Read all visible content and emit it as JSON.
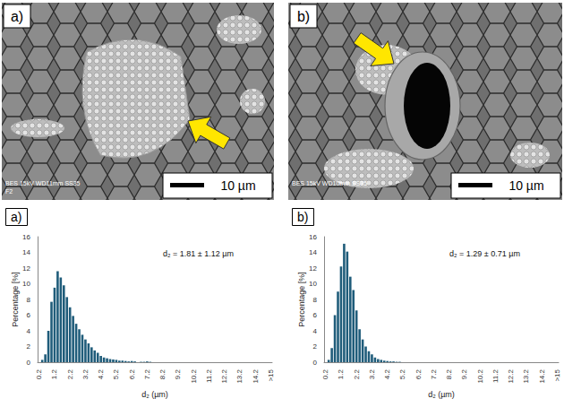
{
  "images": [
    {
      "label": "a)",
      "scale_bar": "10 µm",
      "info": "BES  15kV  WD11mm  SS35",
      "info2": "F2"
    },
    {
      "label": "b)",
      "scale_bar": "10 µm",
      "info": "BES  15kV  WD10mm  SS35"
    }
  ],
  "chart_data": [
    {
      "type": "bar",
      "title": "a)",
      "annotations": [
        "d₂ = 1.81 ± 1.12 µm"
      ],
      "x_label": "d₂ (µm)",
      "y_label": "Percentage [%]",
      "categories": [
        "0.2",
        null,
        null,
        null,
        null,
        "1.2",
        null,
        null,
        null,
        null,
        "2.2",
        null,
        null,
        null,
        null,
        "3.2",
        null,
        null,
        null,
        null,
        "4.2",
        null,
        null,
        null,
        null,
        "5.2",
        null,
        null,
        null,
        null,
        "6.2",
        null,
        null,
        null,
        null,
        "7.2",
        null,
        null,
        null,
        null,
        "8.2",
        null,
        null,
        null,
        null,
        "9.2",
        null,
        null,
        null,
        null,
        "10.2",
        null,
        null,
        null,
        null,
        "11.2",
        null,
        null,
        null,
        null,
        "12.2",
        null,
        null,
        null,
        null,
        "13.2",
        null,
        null,
        null,
        null,
        "14.2",
        null,
        null,
        null,
        null,
        ">15"
      ],
      "values": [
        0,
        0.3,
        1.0,
        4.0,
        7.7,
        9.5,
        11.6,
        10.8,
        9.8,
        8.3,
        7.0,
        5.9,
        4.9,
        4.2,
        3.5,
        2.9,
        2.4,
        1.9,
        1.5,
        1.2,
        0.8,
        0.6,
        0.5,
        0.4,
        0.35,
        0.3,
        0.2,
        0.2,
        0.15,
        0.1,
        0.15,
        0.1,
        0,
        0.05,
        0.05,
        0.1,
        0.05,
        0,
        0,
        0,
        0,
        0,
        0,
        0,
        0,
        0,
        0,
        0,
        0,
        0,
        0,
        0,
        0,
        0,
        0,
        0,
        0,
        0,
        0,
        0,
        0,
        0,
        0,
        0,
        0,
        0,
        0,
        0,
        0,
        0,
        0,
        0,
        0,
        0,
        0,
        0
      ],
      "color": "#1f5c7a",
      "ylim": [
        0,
        16
      ],
      "yticks": [
        0,
        2,
        4,
        6,
        8,
        10,
        12,
        14,
        16
      ],
      "grid": false
    },
    {
      "type": "bar",
      "title": "b)",
      "annotations": [
        "d₂ = 1.29 ± 0.71 µm"
      ],
      "x_label": "d₂ (µm)",
      "y_label": "Percentage [%]",
      "categories": [
        "0.2",
        null,
        null,
        null,
        null,
        "1.2",
        null,
        null,
        null,
        null,
        "2.2",
        null,
        null,
        null,
        null,
        "3.2",
        null,
        null,
        null,
        null,
        "4.2",
        null,
        null,
        null,
        null,
        "5.2",
        null,
        null,
        null,
        null,
        "6.2",
        null,
        null,
        null,
        null,
        "7.2",
        null,
        null,
        null,
        null,
        "8.2",
        null,
        null,
        null,
        null,
        "9.2",
        null,
        null,
        null,
        null,
        "10.2",
        null,
        null,
        null,
        null,
        "11.2",
        null,
        null,
        null,
        null,
        "12.2",
        null,
        null,
        null,
        null,
        "13.2",
        null,
        null,
        null,
        null,
        "14.2",
        null,
        null,
        null,
        null,
        ">15"
      ],
      "values": [
        0,
        0.3,
        1.8,
        6.0,
        9.0,
        12.2,
        15.1,
        14.1,
        10.9,
        9.2,
        6.6,
        4.2,
        2.9,
        2.0,
        1.4,
        1.0,
        0.6,
        0.4,
        0.3,
        0.2,
        0.15,
        0.1,
        0.1,
        0.05,
        0.05,
        0,
        0,
        0,
        0,
        0,
        0,
        0,
        0,
        0,
        0,
        0,
        0,
        0,
        0,
        0,
        0,
        0,
        0,
        0,
        0,
        0,
        0,
        0,
        0,
        0,
        0,
        0,
        0,
        0,
        0,
        0,
        0,
        0,
        0,
        0,
        0,
        0,
        0,
        0,
        0,
        0,
        0,
        0,
        0,
        0,
        0,
        0,
        0,
        0,
        0,
        0
      ],
      "color": "#1f5c7a",
      "ylim": [
        0,
        16
      ],
      "yticks": [
        0,
        2,
        4,
        6,
        8,
        10,
        12,
        14,
        16
      ],
      "grid": false
    }
  ]
}
